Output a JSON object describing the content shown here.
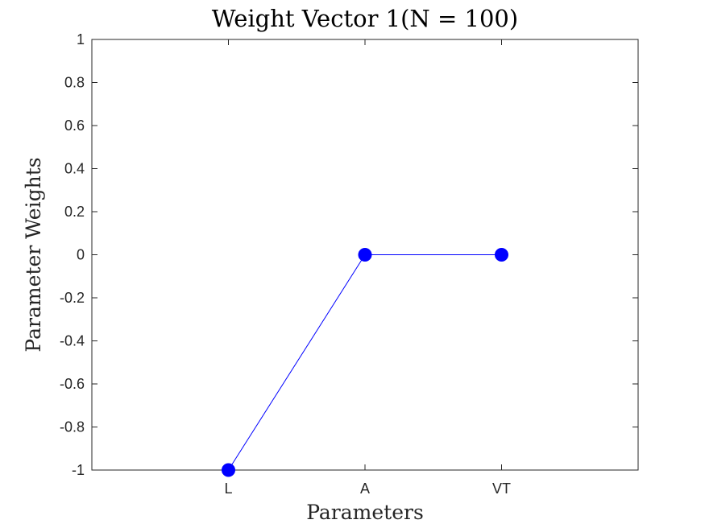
{
  "chart_data": {
    "type": "line",
    "title": "Weight Vector 1(N = 100)",
    "xlabel": "Parameters",
    "ylabel": "Parameter Weights",
    "categories": [
      "L",
      "A",
      "VT"
    ],
    "series": [
      {
        "values": [
          -1,
          0,
          0
        ],
        "color": "#0000ff",
        "marker": "filled-circle"
      }
    ],
    "ylim": [
      -1,
      1
    ],
    "xlim": [
      0,
      4
    ],
    "yticks": [
      -1,
      -0.8,
      -0.6,
      -0.4,
      -0.2,
      0,
      0.2,
      0.4,
      0.6,
      0.8,
      1
    ],
    "ytick_labels": [
      "-1",
      "-0.8",
      "-0.6",
      "-0.4",
      "-0.2",
      "0",
      "0.2",
      "0.4",
      "0.6",
      "0.8",
      "1"
    ],
    "grid": false,
    "box": true
  }
}
